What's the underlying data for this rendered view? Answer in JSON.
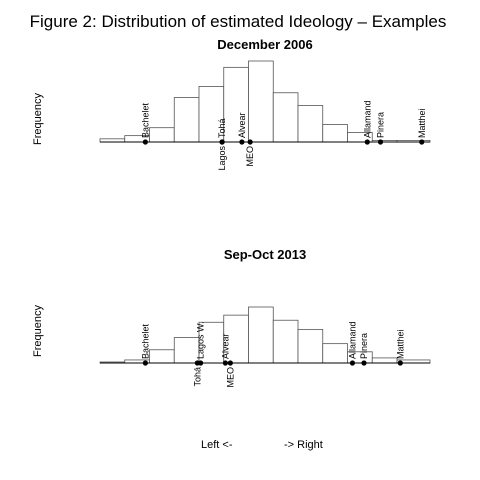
{
  "figure": {
    "title": "Figure 2: Distribution of estimated Ideology – Examples",
    "footer_left": "Left <-",
    "footer_right": "-> Right"
  },
  "chart_data": [
    {
      "type": "bar",
      "title": "December 2006",
      "xlabel": "",
      "ylabel": "Frequency",
      "x_range": [
        -2.0,
        2.0
      ],
      "bin_edges": [
        -2.0,
        -1.7,
        -1.4,
        -1.1,
        -0.8,
        -0.5,
        -0.2,
        0.1,
        0.4,
        0.7,
        1.0,
        1.3,
        1.6,
        2.0
      ],
      "values": [
        2,
        4,
        9,
        28,
        35,
        47,
        51,
        31,
        23,
        11,
        6,
        1,
        1
      ],
      "politicians": [
        {
          "name": "Bachelet",
          "value": -1.45,
          "side": "above"
        },
        {
          "name": "Lagos",
          "value": -0.52,
          "side": "below"
        },
        {
          "name": "Tohá",
          "value": -0.52,
          "side": "above"
        },
        {
          "name": "Alvear",
          "value": -0.28,
          "side": "above"
        },
        {
          "name": "MEO",
          "value": -0.18,
          "side": "below"
        },
        {
          "name": "Allamand",
          "value": 1.24,
          "side": "above"
        },
        {
          "name": "Pinera",
          "value": 1.4,
          "side": "above"
        },
        {
          "name": "Matthei",
          "value": 1.9,
          "side": "above"
        }
      ]
    },
    {
      "type": "bar",
      "title": "Sep-Oct 2013",
      "xlabel": "",
      "ylabel": "Frequency",
      "x_range": [
        -2.0,
        2.0
      ],
      "bin_edges": [
        -2.0,
        -1.7,
        -1.4,
        -1.1,
        -0.8,
        -0.5,
        -0.2,
        0.1,
        0.4,
        0.7,
        1.0,
        1.3,
        1.6,
        2.0
      ],
      "values": [
        1,
        3,
        13,
        25,
        40,
        47,
        55,
        42,
        33,
        19,
        11,
        5,
        3
      ],
      "politicians": [
        {
          "name": "Bachelet",
          "value": -1.45,
          "side": "above"
        },
        {
          "name": "Tohá",
          "value": -0.82,
          "side": "below"
        },
        {
          "name": "Lagos W.",
          "value": -0.78,
          "side": "above"
        },
        {
          "name": "Alvear",
          "value": -0.48,
          "side": "above"
        },
        {
          "name": "MEO",
          "value": -0.42,
          "side": "below"
        },
        {
          "name": "Allamand",
          "value": 1.06,
          "side": "above"
        },
        {
          "name": "Pinera",
          "value": 1.2,
          "side": "above"
        },
        {
          "name": "Matthei",
          "value": 1.64,
          "side": "above"
        }
      ]
    }
  ]
}
